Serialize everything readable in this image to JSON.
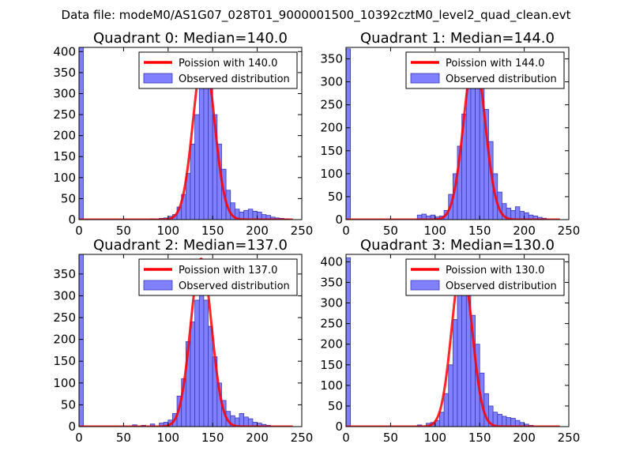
{
  "figure_title": "Data file: modeM0/AS1G07_028T01_9000001500_10392cztM0_level2_quad_clean.evt",
  "colors": {
    "bar_fill": "#8080ff",
    "bar_edge": "#3a3ab8",
    "curve": "#ff0000",
    "axes": "#000000",
    "legend_border": "#000000"
  },
  "chart_data": [
    {
      "type": "bar",
      "title": "Quadrant 0: Median=140.0",
      "xlim": [
        0,
        250
      ],
      "ylim": [
        0,
        410
      ],
      "xticks": [
        "0",
        "50",
        "100",
        "150",
        "200",
        "250"
      ],
      "xtick_values": [
        0,
        50,
        100,
        150,
        200,
        250
      ],
      "yticks": [
        "0",
        "50",
        "100",
        "150",
        "200",
        "250",
        "300",
        "350",
        "400"
      ],
      "ytick_values": [
        0,
        50,
        100,
        150,
        200,
        250,
        300,
        350,
        400
      ],
      "legend": [
        "Poission with 140.0",
        "Observed distribution"
      ],
      "legend_position": "upper-right",
      "bin_width": 5,
      "bins": [
        [
          0,
          410
        ],
        [
          80,
          2
        ],
        [
          85,
          1
        ],
        [
          90,
          3
        ],
        [
          95,
          4
        ],
        [
          100,
          8
        ],
        [
          105,
          12
        ],
        [
          110,
          30
        ],
        [
          115,
          60
        ],
        [
          120,
          110
        ],
        [
          125,
          180
        ],
        [
          130,
          250
        ],
        [
          135,
          330
        ],
        [
          140,
          380
        ],
        [
          145,
          320
        ],
        [
          150,
          250
        ],
        [
          155,
          180
        ],
        [
          160,
          120
        ],
        [
          165,
          70
        ],
        [
          170,
          40
        ],
        [
          175,
          25
        ],
        [
          180,
          18
        ],
        [
          185,
          22
        ],
        [
          190,
          25
        ],
        [
          195,
          20
        ],
        [
          200,
          18
        ],
        [
          205,
          12
        ],
        [
          210,
          10
        ],
        [
          215,
          6
        ],
        [
          220,
          4
        ],
        [
          225,
          3
        ],
        [
          230,
          2
        ]
      ],
      "poisson_mean": 140.0,
      "poisson_peak": 395
    },
    {
      "type": "bar",
      "title": "Quadrant 1: Median=144.0",
      "xlim": [
        0,
        250
      ],
      "ylim": [
        0,
        375
      ],
      "xticks": [
        "0",
        "50",
        "100",
        "150",
        "200",
        "250"
      ],
      "xtick_values": [
        0,
        50,
        100,
        150,
        200,
        250
      ],
      "yticks": [
        "0",
        "50",
        "100",
        "150",
        "200",
        "250",
        "300",
        "350"
      ],
      "ytick_values": [
        0,
        50,
        100,
        150,
        200,
        250,
        300,
        350
      ],
      "legend": [
        "Poission with 144.0",
        "Observed distribution"
      ],
      "legend_position": "upper-right",
      "bin_width": 5,
      "bins": [
        [
          0,
          372
        ],
        [
          80,
          10
        ],
        [
          85,
          12
        ],
        [
          90,
          8
        ],
        [
          95,
          10
        ],
        [
          100,
          6
        ],
        [
          105,
          8
        ],
        [
          110,
          20
        ],
        [
          115,
          55
        ],
        [
          120,
          100
        ],
        [
          125,
          160
        ],
        [
          130,
          230
        ],
        [
          135,
          290
        ],
        [
          140,
          330
        ],
        [
          145,
          350
        ],
        [
          150,
          300
        ],
        [
          155,
          240
        ],
        [
          160,
          170
        ],
        [
          165,
          100
        ],
        [
          170,
          60
        ],
        [
          175,
          35
        ],
        [
          180,
          25
        ],
        [
          185,
          20
        ],
        [
          190,
          28
        ],
        [
          195,
          18
        ],
        [
          200,
          15
        ],
        [
          205,
          10
        ],
        [
          210,
          8
        ],
        [
          215,
          5
        ],
        [
          220,
          3
        ]
      ],
      "poisson_mean": 144.0,
      "poisson_peak": 355
    },
    {
      "type": "bar",
      "title": "Quadrant 2: Median=137.0",
      "xlim": [
        0,
        250
      ],
      "ylim": [
        0,
        395
      ],
      "xticks": [
        "0",
        "50",
        "100",
        "150",
        "200",
        "250"
      ],
      "xtick_values": [
        0,
        50,
        100,
        150,
        200,
        250
      ],
      "yticks": [
        "0",
        "50",
        "100",
        "150",
        "200",
        "250",
        "300",
        "350"
      ],
      "ytick_values": [
        0,
        50,
        100,
        150,
        200,
        250,
        300,
        350
      ],
      "legend": [
        "Poission with 137.0",
        "Observed distribution"
      ],
      "legend_position": "upper-right",
      "bin_width": 5,
      "bins": [
        [
          0,
          395
        ],
        [
          60,
          4
        ],
        [
          70,
          3
        ],
        [
          80,
          6
        ],
        [
          90,
          8
        ],
        [
          95,
          10
        ],
        [
          100,
          15
        ],
        [
          105,
          30
        ],
        [
          110,
          70
        ],
        [
          115,
          110
        ],
        [
          120,
          195
        ],
        [
          125,
          240
        ],
        [
          130,
          290
        ],
        [
          135,
          380
        ],
        [
          140,
          290
        ],
        [
          145,
          230
        ],
        [
          150,
          160
        ],
        [
          155,
          100
        ],
        [
          160,
          60
        ],
        [
          165,
          35
        ],
        [
          170,
          25
        ],
        [
          175,
          20
        ],
        [
          180,
          30
        ],
        [
          185,
          22
        ],
        [
          190,
          18
        ],
        [
          195,
          10
        ],
        [
          200,
          8
        ],
        [
          205,
          5
        ],
        [
          210,
          3
        ]
      ],
      "poisson_mean": 137.0,
      "poisson_peak": 385
    },
    {
      "type": "bar",
      "title": "Quadrant 3: Median=130.0",
      "xlim": [
        0,
        250
      ],
      "ylim": [
        0,
        418
      ],
      "xticks": [
        "0",
        "50",
        "100",
        "150",
        "200",
        "250"
      ],
      "xtick_values": [
        0,
        50,
        100,
        150,
        200,
        250
      ],
      "yticks": [
        "0",
        "50",
        "100",
        "150",
        "200",
        "250",
        "300",
        "350",
        "400"
      ],
      "ytick_values": [
        0,
        50,
        100,
        150,
        200,
        250,
        300,
        350,
        400
      ],
      "legend": [
        "Poission with 130.0",
        "Observed distribution"
      ],
      "legend_position": "upper-right",
      "bin_width": 5,
      "bins": [
        [
          0,
          410
        ],
        [
          80,
          4
        ],
        [
          90,
          8
        ],
        [
          95,
          10
        ],
        [
          100,
          15
        ],
        [
          105,
          35
        ],
        [
          110,
          80
        ],
        [
          115,
          150
        ],
        [
          120,
          260
        ],
        [
          125,
          320
        ],
        [
          130,
          380
        ],
        [
          135,
          340
        ],
        [
          140,
          270
        ],
        [
          145,
          200
        ],
        [
          150,
          130
        ],
        [
          155,
          80
        ],
        [
          160,
          50
        ],
        [
          165,
          35
        ],
        [
          170,
          30
        ],
        [
          175,
          25
        ],
        [
          180,
          22
        ],
        [
          185,
          20
        ],
        [
          190,
          15
        ],
        [
          195,
          10
        ],
        [
          200,
          6
        ],
        [
          205,
          3
        ]
      ],
      "poisson_mean": 130.0,
      "poisson_peak": 395
    }
  ]
}
